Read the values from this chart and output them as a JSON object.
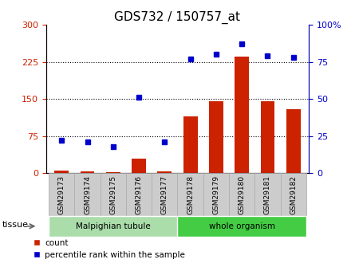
{
  "title": "GDS732 / 150757_at",
  "samples": [
    "GSM29173",
    "GSM29174",
    "GSM29175",
    "GSM29176",
    "GSM29177",
    "GSM29178",
    "GSM29179",
    "GSM29180",
    "GSM29181",
    "GSM29182"
  ],
  "count_values": [
    5,
    3,
    2,
    30,
    3,
    115,
    145,
    235,
    145,
    130
  ],
  "percentile_values": [
    22,
    21,
    18,
    51,
    21,
    77,
    80,
    87,
    79,
    78
  ],
  "bar_color": "#cc2200",
  "dot_color": "#0000cc",
  "left_ylim": [
    0,
    300
  ],
  "right_ylim": [
    0,
    100
  ],
  "left_yticks": [
    0,
    75,
    150,
    225,
    300
  ],
  "right_yticks": [
    0,
    25,
    50,
    75,
    100
  ],
  "right_yticklabels": [
    "0",
    "25",
    "50",
    "75",
    "100%"
  ],
  "hlines": [
    75,
    150,
    225
  ],
  "tissue_groups": [
    {
      "label": "Malpighian tubule",
      "start": 0,
      "end": 5,
      "color": "#aaddaa"
    },
    {
      "label": "whole organism",
      "start": 5,
      "end": 10,
      "color": "#44cc44"
    }
  ],
  "legend_items": [
    {
      "label": "count",
      "color": "#cc2200"
    },
    {
      "label": "percentile rank within the sample",
      "color": "#0000cc"
    }
  ],
  "xlabel_tissue": "tissue",
  "bar_width": 0.55,
  "figsize": [
    4.45,
    3.45
  ],
  "dpi": 100,
  "background_plot": "#ffffff",
  "tick_label_color_left": "#cc2200",
  "tick_label_color_right": "#0000cc",
  "title_fontsize": 11,
  "tick_fontsize": 8,
  "sample_box_color": "#cccccc",
  "sample_box_edge": "#aaaaaa"
}
